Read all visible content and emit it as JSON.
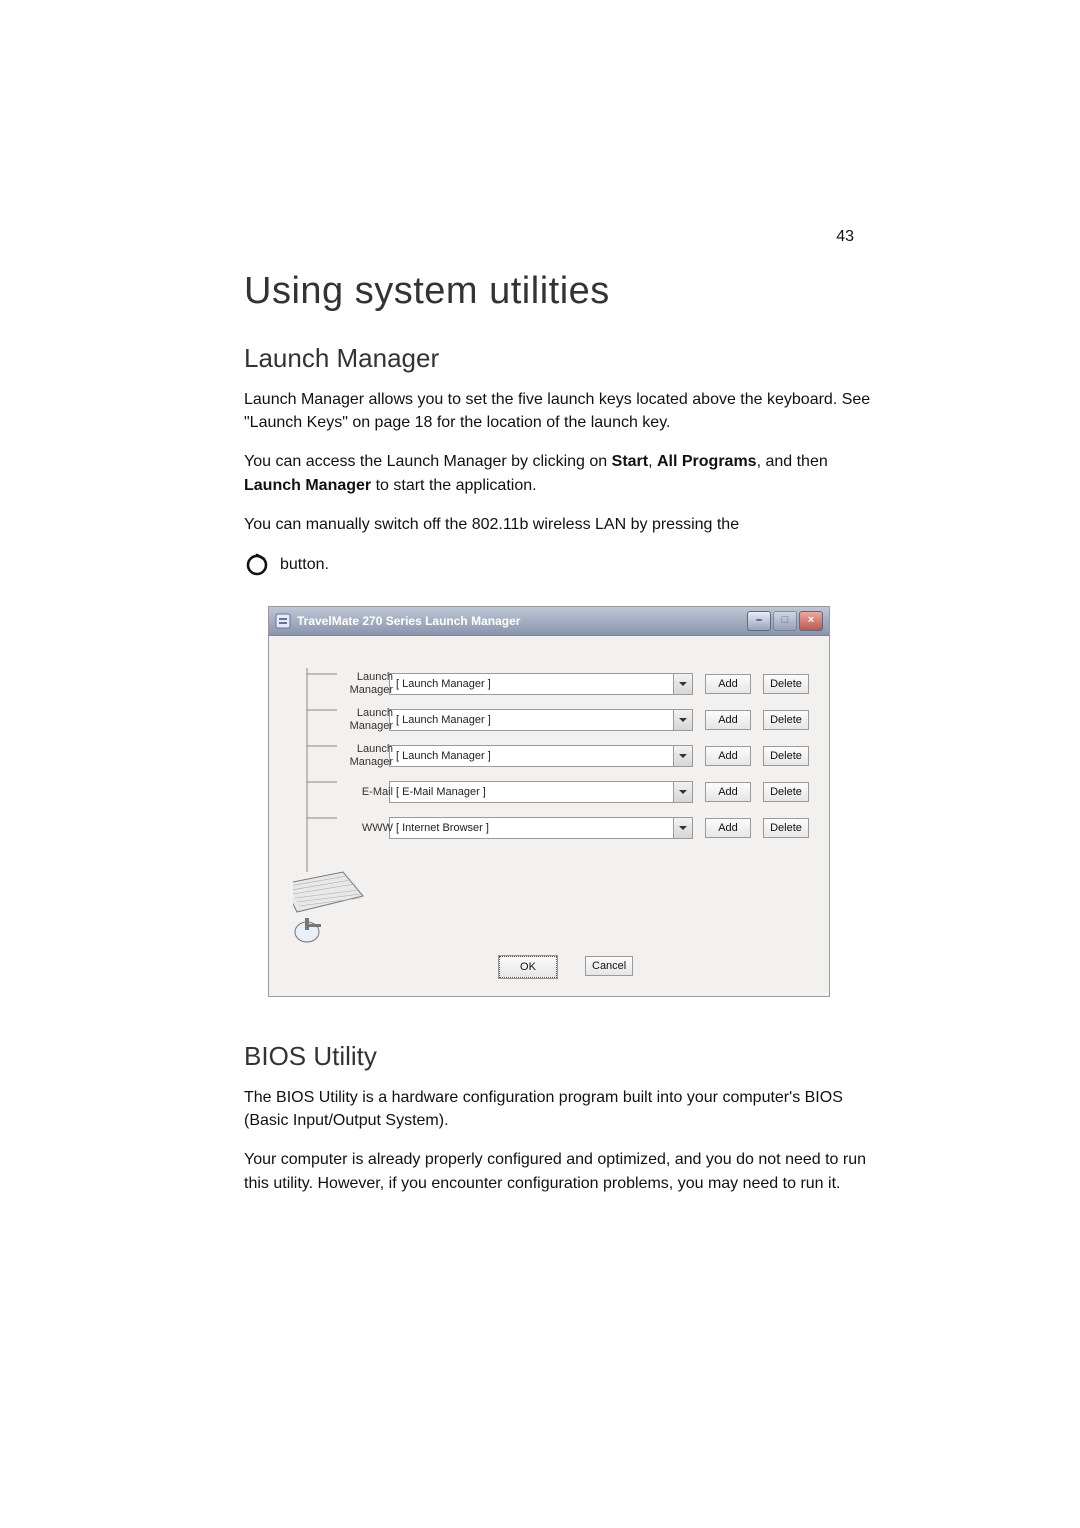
{
  "page_number": "43",
  "heading": "Using system utilities",
  "sections": {
    "launch_manager": {
      "title": "Launch Manager",
      "p1_a": "Launch Manager allows you to set the five launch keys located above the keyboard.  See \"Launch Keys\" on page 18 for the location of the launch key.",
      "p2_pre": "You can access the Launch Manager by clicking on ",
      "p2_b1": "Start",
      "p2_mid1": ", ",
      "p2_b2": "All Programs",
      "p2_mid2": ", and then ",
      "p2_b3": "Launch Manager",
      "p2_post": " to start the application.",
      "p3": "You can manually switch off the 802.11b wireless LAN by pressing the",
      "p3_tail": " button."
    },
    "bios": {
      "title": "BIOS Utility",
      "p1": "The BIOS Utility is a hardware configuration program built into your computer's BIOS (Basic Input/Output System).",
      "p2": "Your computer is already properly configured and optimized, and you do not need to run this utility.  However, if you encounter configuration problems, you may need to run it."
    }
  },
  "dialog": {
    "title": "TravelMate 270 Series Launch Manager",
    "rows": [
      {
        "label_html": "Launch<br>Manager",
        "value": "[ Launch Manager ]"
      },
      {
        "label_html": "Launch<br>Manager",
        "value": "[ Launch Manager ]"
      },
      {
        "label_html": "Launch<br>Manager",
        "value": "[ Launch Manager ]"
      },
      {
        "label_html": "E-Mail",
        "value": "[ E-Mail Manager ]"
      },
      {
        "label_html": "WWW",
        "value": "[ Internet Browser ]"
      }
    ],
    "add_label": "Add",
    "delete_label": "Delete",
    "ok_label": "OK",
    "cancel_label": "Cancel"
  },
  "colors": {
    "body_text": "#111111",
    "heading_text": "#333333",
    "dialog_bg": "#f3f1f0",
    "dialog_border": "#9a9a9a",
    "titlebar_grad_top": "#bfc7d6",
    "titlebar_grad_bottom": "#8a95ac"
  }
}
